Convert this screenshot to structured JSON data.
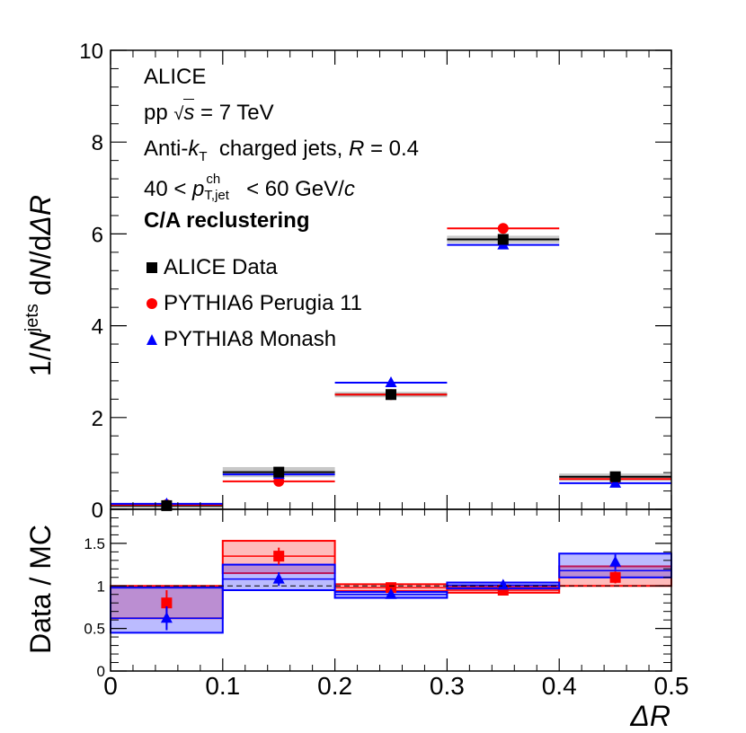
{
  "chart_data": [
    {
      "type": "scatter",
      "panel": "upper",
      "ylabel": "1/N^jets dN/dΔR",
      "ylabel_parts": {
        "pre": "1/",
        "n": "N",
        "sup": "jets",
        "mid": " d",
        "n2": "N",
        "slash": "/d",
        "dr": "ΔR"
      },
      "ylim": [
        0,
        10
      ],
      "yticks": [
        0,
        2,
        4,
        6,
        8,
        10
      ],
      "ytick_labels": [
        "0",
        "2",
        "4",
        "6",
        "8",
        "10"
      ],
      "xlim": [
        0,
        0.5
      ],
      "bins": [
        [
          0,
          0.1
        ],
        [
          0.1,
          0.2
        ],
        [
          0.2,
          0.3
        ],
        [
          0.3,
          0.4
        ],
        [
          0.4,
          0.5
        ]
      ],
      "series": [
        {
          "name": "ALICE Data",
          "color": "#000000",
          "marker": "square",
          "values": [
            0.08,
            0.81,
            2.5,
            5.88,
            0.71
          ],
          "syst_band": [
            [
              0.0,
              0.14
            ],
            [
              0.7,
              0.92
            ],
            [
              2.44,
              2.56
            ],
            [
              5.8,
              5.96
            ],
            [
              0.62,
              0.78
            ]
          ]
        },
        {
          "name": "PYTHIA6 Perugia 11",
          "color": "#ff0000",
          "marker": "circle",
          "values": [
            0.1,
            0.61,
            2.5,
            6.12,
            0.66
          ]
        },
        {
          "name": "PYTHIA8 Monash",
          "color": "#0000ff",
          "marker": "triangle",
          "values": [
            0.12,
            0.76,
            2.76,
            5.76,
            0.57
          ]
        }
      ],
      "annotations": {
        "experiment": "ALICE",
        "energy_pre": "pp",
        "energy_sqrt": "√",
        "energy_s": "s",
        "energy_post": " = 7 TeV",
        "jet_pre": "Anti-",
        "jet_k": "k",
        "jet_T": "T",
        "jet_mid": "  charged jets, ",
        "jet_R": "R",
        "jet_post": " = 0.4",
        "pt_pre": "40 < ",
        "pt_p": "p",
        "pt_sup": "ch",
        "pt_sub": "T,jet",
        "pt_post": " < 60 GeV/",
        "pt_c": "c",
        "method": "C/A reclustering"
      }
    },
    {
      "type": "scatter",
      "panel": "ratio",
      "ylabel": "Data / MC",
      "xlabel": "ΔR",
      "ylim": [
        0,
        1.9
      ],
      "yticks": [
        0,
        0.5,
        1,
        1.5
      ],
      "ytick_labels": [
        "0",
        "0.5",
        "1",
        "1.5"
      ],
      "xlim": [
        0,
        0.5
      ],
      "xticks": [
        0,
        0.1,
        0.2,
        0.3,
        0.4,
        0.5
      ],
      "xtick_labels": [
        "0",
        "0.1",
        "0.2",
        "0.3",
        "0.4",
        "0.5"
      ],
      "reference_line": 1,
      "bins": [
        [
          0,
          0.1
        ],
        [
          0.1,
          0.2
        ],
        [
          0.2,
          0.3
        ],
        [
          0.3,
          0.4
        ],
        [
          0.4,
          0.5
        ]
      ],
      "series": [
        {
          "name": "Data / PYTHIA6 Perugia 11",
          "color": "#ff0000",
          "marker": "square",
          "values": [
            0.8,
            1.35,
            0.98,
            0.95,
            1.1
          ],
          "stat_err": [
            0.15,
            0.1,
            0.02,
            0.02,
            0.07
          ],
          "band": [
            [
              0.62,
              1.0
            ],
            [
              1.15,
              1.53
            ],
            [
              0.94,
              1.02
            ],
            [
              0.92,
              0.99
            ],
            [
              1.0,
              1.23
            ]
          ],
          "band_line": [
            0.62,
            1.35,
            0.98,
            0.95,
            1.1
          ]
        },
        {
          "name": "Data / PYTHIA8 Monash",
          "color": "#0000ff",
          "marker": "triangle",
          "values": [
            0.62,
            1.08,
            0.9,
            1.01,
            1.28
          ],
          "stat_err": [
            0.14,
            0.08,
            0.02,
            0.02,
            0.09
          ],
          "band": [
            [
              0.45,
              0.98
            ],
            [
              0.95,
              1.25
            ],
            [
              0.86,
              0.93
            ],
            [
              0.97,
              1.04
            ],
            [
              1.1,
              1.38
            ]
          ],
          "band_line": [
            0.62,
            1.08,
            0.9,
            1.01,
            1.18
          ]
        }
      ]
    }
  ]
}
